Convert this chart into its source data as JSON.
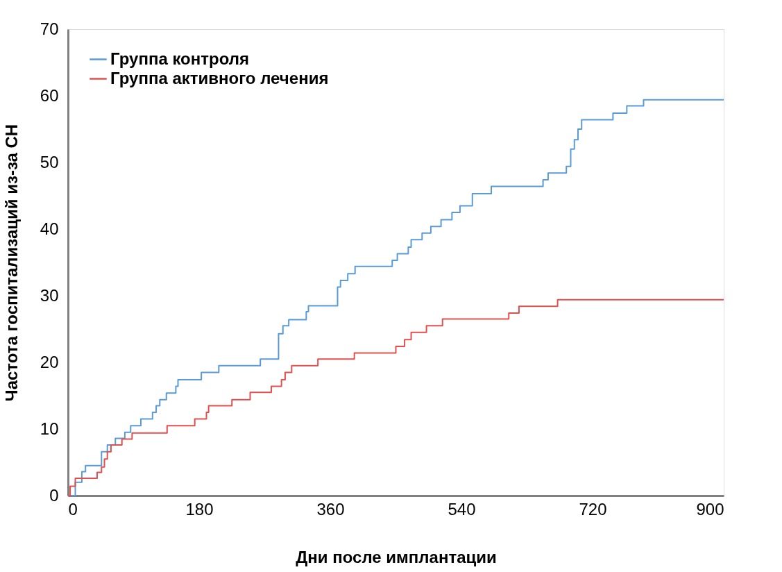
{
  "chart_data": {
    "type": "step",
    "xlabel": "Дни после имплантации",
    "ylabel": "Частота госпитализаций из-за СН",
    "xlim": [
      0,
      900
    ],
    "xticks": [
      0,
      180,
      360,
      540,
      720,
      900
    ],
    "ylim": [
      0,
      70
    ],
    "yticks": [
      0,
      10,
      20,
      30,
      40,
      50,
      60,
      70
    ],
    "grid": false,
    "legend": "top left",
    "line_style": "solid",
    "marker": "none",
    "series": [
      {
        "name": "Группа контроля",
        "color": "#5b9bd5",
        "x": [
          0,
          10,
          19,
          24,
          46,
          54,
          65,
          78,
          86,
          100,
          116,
          121,
          126,
          135,
          148,
          151,
          183,
          207,
          264,
          289,
          295,
          303,
          327,
          330,
          370,
          374,
          384,
          394,
          445,
          452,
          467,
          471,
          486,
          498,
          512,
          527,
          538,
          555,
          581,
          652,
          659,
          684,
          690,
          695,
          700,
          705,
          748,
          767,
          790,
          900
        ],
        "values": [
          0,
          2,
          3.6,
          4.5,
          6.6,
          7.6,
          8.6,
          9.5,
          10.5,
          11.5,
          12.5,
          13.5,
          14.4,
          15.4,
          16.4,
          17.4,
          18.5,
          19.5,
          20.5,
          24.3,
          25.5,
          26.4,
          27.6,
          28.5,
          31.3,
          32.3,
          33.3,
          34.4,
          35.3,
          36.3,
          37.3,
          38.4,
          39.4,
          40.4,
          41.4,
          42.5,
          43.5,
          45.3,
          46.4,
          47.4,
          48.4,
          49.4,
          52,
          53.4,
          55,
          56.4,
          57.4,
          58.5,
          59.4,
          59.4
        ]
      },
      {
        "name": "Группа активного лечения",
        "color": "#e0504f",
        "x": [
          0,
          3,
          10,
          40,
          46,
          50,
          54,
          59,
          74,
          88,
          136,
          174,
          190,
          193,
          225,
          250,
          279,
          293,
          298,
          307,
          343,
          393,
          450,
          462,
          471,
          492,
          514,
          605,
          619,
          672,
          900
        ],
        "values": [
          0,
          1.4,
          2.6,
          3.5,
          4.3,
          5.5,
          6.6,
          7.6,
          8.5,
          9.4,
          10.5,
          11.5,
          12.5,
          13.5,
          14.4,
          15.5,
          16.4,
          17.4,
          18.5,
          19.5,
          20.5,
          21.4,
          22.4,
          23.4,
          24.5,
          25.5,
          26.5,
          27.4,
          28.4,
          29.4,
          29.4
        ]
      }
    ]
  }
}
